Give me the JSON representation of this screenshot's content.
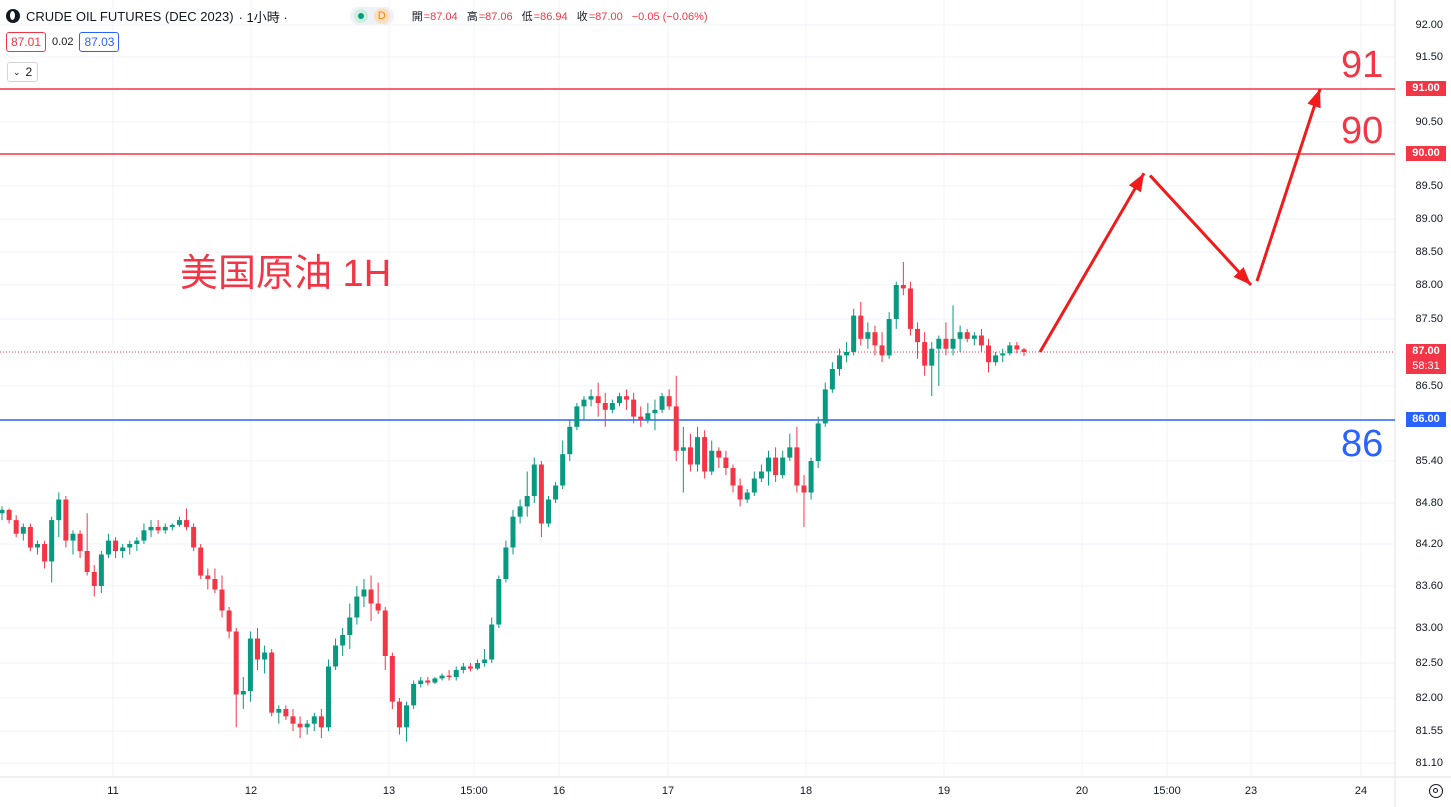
{
  "header": {
    "symbol": "CRUDE OIL FUTURES (DEC 2023)",
    "interval": "· 1小時 ·",
    "market_tag": "D",
    "ohlc": {
      "o_label": "開",
      "o": "=87.04",
      "h_label": "高",
      "h": "=87.06",
      "l_label": "低",
      "l": "=86.94",
      "c_label": "收",
      "c": "=87.00",
      "change": "−0.05 (−0.06%)"
    },
    "bid": "87.01",
    "spread": "0.02",
    "ask": "87.03",
    "indicator_count": "2"
  },
  "annotation": {
    "title": "美国原油 1H",
    "level_91": "91",
    "level_90": "90",
    "level_86": "86"
  },
  "price_axis": {
    "ticks": [
      "92.00",
      "91.50",
      "90.50",
      "89.50",
      "89.00",
      "88.50",
      "88.00",
      "87.50",
      "86.50",
      "85.40",
      "84.80",
      "84.20",
      "83.60",
      "83.00",
      "82.50",
      "82.00",
      "81.55",
      "81.10"
    ],
    "badges": {
      "b91": "91.00",
      "b90": "90.00",
      "last": "87.00",
      "countdown": "58:31",
      "b86": "86.00"
    }
  },
  "time_axis": {
    "labels": [
      "11",
      "12",
      "13",
      "15:00",
      "16",
      "17",
      "18",
      "19",
      "20",
      "15:00",
      "23",
      "24"
    ]
  },
  "colors": {
    "up": "#089981",
    "down": "#f23645",
    "resistance_line": "#f23645",
    "support_line": "#2962ff",
    "arrow": "#f21b1b"
  },
  "icons": [
    "instrument-logo-icon",
    "market-status-dot-icon",
    "chevron-down-icon",
    "settings-gear-icon"
  ],
  "chart_data": {
    "type": "candlestick",
    "instrument": "CRUDE OIL FUTURES (DEC 2023)",
    "timeframe": "1H",
    "price_range": [
      81.1,
      92.0
    ],
    "horizontal_levels": [
      {
        "price": 91.0,
        "color": "red"
      },
      {
        "price": 90.0,
        "color": "red"
      },
      {
        "price": 86.0,
        "color": "blue"
      }
    ],
    "last_price": 87.0,
    "projected_path_prices": [
      87.0,
      89.7,
      88.0,
      91.0
    ],
    "candles_ohlc": [
      [
        84.65,
        84.75,
        84.55,
        84.7
      ],
      [
        84.7,
        84.72,
        84.5,
        84.55
      ],
      [
        84.55,
        84.62,
        84.3,
        84.35
      ],
      [
        84.35,
        84.5,
        84.25,
        84.45
      ],
      [
        84.45,
        84.5,
        84.1,
        84.15
      ],
      [
        84.15,
        84.25,
        84.05,
        84.2
      ],
      [
        84.2,
        84.25,
        83.85,
        83.95
      ],
      [
        83.95,
        84.6,
        83.65,
        84.55
      ],
      [
        84.55,
        84.95,
        84.3,
        84.85
      ],
      [
        84.85,
        84.9,
        84.15,
        84.25
      ],
      [
        84.25,
        84.4,
        84.05,
        84.35
      ],
      [
        84.35,
        84.4,
        84.0,
        84.1
      ],
      [
        84.1,
        84.65,
        83.75,
        83.8
      ],
      [
        83.8,
        83.9,
        83.45,
        83.6
      ],
      [
        83.6,
        84.1,
        83.5,
        84.05
      ],
      [
        84.05,
        84.35,
        84.0,
        84.25
      ],
      [
        84.25,
        84.3,
        84.0,
        84.1
      ],
      [
        84.1,
        84.2,
        84.0,
        84.15
      ],
      [
        84.15,
        84.25,
        84.05,
        84.2
      ],
      [
        84.2,
        84.3,
        84.1,
        84.25
      ],
      [
        84.25,
        84.5,
        84.2,
        84.4
      ],
      [
        84.4,
        84.55,
        84.3,
        84.45
      ],
      [
        84.45,
        84.55,
        84.35,
        84.4
      ],
      [
        84.4,
        84.5,
        84.35,
        84.45
      ],
      [
        84.45,
        84.5,
        84.4,
        84.48
      ],
      [
        84.48,
        84.6,
        84.45,
        84.55
      ],
      [
        84.55,
        84.72,
        84.4,
        84.45
      ],
      [
        84.45,
        84.5,
        84.1,
        84.15
      ],
      [
        84.15,
        84.2,
        83.7,
        83.75
      ],
      [
        83.75,
        83.85,
        83.55,
        83.7
      ],
      [
        83.7,
        83.85,
        83.5,
        83.55
      ],
      [
        83.55,
        83.75,
        83.15,
        83.25
      ],
      [
        83.25,
        83.3,
        82.85,
        82.95
      ],
      [
        82.95,
        83.0,
        81.6,
        82.05
      ],
      [
        82.05,
        82.3,
        81.85,
        82.1
      ],
      [
        82.1,
        82.95,
        81.95,
        82.85
      ],
      [
        82.85,
        83.0,
        82.4,
        82.55
      ],
      [
        82.55,
        82.75,
        82.35,
        82.65
      ],
      [
        82.65,
        82.7,
        81.75,
        81.8
      ],
      [
        81.8,
        81.9,
        81.65,
        81.85
      ],
      [
        81.85,
        81.9,
        81.7,
        81.75
      ],
      [
        81.75,
        81.85,
        81.55,
        81.65
      ],
      [
        81.65,
        81.75,
        81.45,
        81.6
      ],
      [
        81.6,
        81.7,
        81.5,
        81.65
      ],
      [
        81.65,
        81.8,
        81.55,
        81.75
      ],
      [
        81.75,
        81.85,
        81.45,
        81.6
      ],
      [
        81.6,
        82.55,
        81.55,
        82.45
      ],
      [
        82.45,
        82.85,
        82.4,
        82.75
      ],
      [
        82.75,
        83.0,
        82.6,
        82.9
      ],
      [
        82.9,
        83.35,
        82.7,
        83.15
      ],
      [
        83.15,
        83.6,
        83.05,
        83.45
      ],
      [
        83.45,
        83.7,
        83.3,
        83.55
      ],
      [
        83.55,
        83.75,
        83.1,
        83.35
      ],
      [
        83.35,
        83.65,
        83.2,
        83.25
      ],
      [
        83.25,
        83.3,
        82.4,
        82.6
      ],
      [
        82.6,
        82.65,
        81.85,
        81.95
      ],
      [
        81.95,
        82.0,
        81.5,
        81.6
      ],
      [
        81.6,
        81.95,
        81.4,
        81.9
      ],
      [
        81.9,
        82.25,
        81.85,
        82.2
      ],
      [
        82.2,
        82.3,
        82.15,
        82.25
      ],
      [
        82.25,
        82.3,
        82.18,
        82.22
      ],
      [
        82.22,
        82.3,
        82.2,
        82.28
      ],
      [
        82.28,
        82.35,
        82.25,
        82.32
      ],
      [
        82.32,
        82.4,
        82.25,
        82.3
      ],
      [
        82.3,
        82.45,
        82.25,
        82.4
      ],
      [
        82.4,
        82.5,
        82.35,
        82.45
      ],
      [
        82.45,
        82.5,
        82.38,
        82.42
      ],
      [
        82.42,
        82.55,
        82.4,
        82.5
      ],
      [
        82.5,
        82.7,
        82.45,
        82.55
      ],
      [
        82.55,
        83.15,
        82.5,
        83.05
      ],
      [
        83.05,
        83.75,
        83.0,
        83.7
      ],
      [
        83.7,
        84.25,
        83.65,
        84.15
      ],
      [
        84.15,
        84.7,
        84.05,
        84.6
      ],
      [
        84.6,
        84.85,
        84.5,
        84.75
      ],
      [
        84.75,
        85.25,
        84.6,
        84.9
      ],
      [
        84.9,
        85.45,
        84.8,
        85.35
      ],
      [
        85.35,
        85.4,
        84.3,
        84.5
      ],
      [
        84.5,
        84.9,
        84.45,
        84.85
      ],
      [
        84.85,
        85.1,
        84.8,
        85.05
      ],
      [
        85.05,
        85.7,
        85.0,
        85.5
      ],
      [
        85.5,
        86.0,
        85.4,
        85.9
      ],
      [
        85.9,
        86.25,
        85.85,
        86.2
      ],
      [
        86.2,
        86.35,
        86.0,
        86.3
      ],
      [
        86.3,
        86.45,
        86.2,
        86.35
      ],
      [
        86.35,
        86.55,
        86.05,
        86.25
      ],
      [
        86.25,
        86.4,
        85.9,
        86.15
      ],
      [
        86.15,
        86.3,
        86.1,
        86.25
      ],
      [
        86.25,
        86.4,
        86.2,
        86.35
      ],
      [
        86.35,
        86.45,
        86.15,
        86.3
      ],
      [
        86.3,
        86.4,
        85.95,
        86.05
      ],
      [
        86.05,
        86.2,
        85.9,
        86.0
      ],
      [
        86.0,
        86.25,
        85.95,
        86.1
      ],
      [
        86.1,
        86.3,
        85.85,
        86.15
      ],
      [
        86.15,
        86.4,
        86.1,
        86.35
      ],
      [
        86.35,
        86.45,
        86.15,
        86.2
      ],
      [
        86.2,
        86.65,
        85.4,
        85.55
      ],
      [
        85.55,
        85.9,
        84.95,
        85.6
      ],
      [
        85.6,
        85.8,
        85.25,
        85.35
      ],
      [
        85.35,
        85.9,
        85.25,
        85.75
      ],
      [
        85.75,
        85.85,
        85.15,
        85.25
      ],
      [
        85.25,
        85.7,
        85.2,
        85.55
      ],
      [
        85.55,
        85.6,
        85.3,
        85.45
      ],
      [
        85.45,
        85.55,
        85.2,
        85.3
      ],
      [
        85.3,
        85.35,
        84.95,
        85.05
      ],
      [
        85.05,
        85.15,
        84.75,
        84.85
      ],
      [
        84.85,
        85.0,
        84.8,
        84.95
      ],
      [
        84.95,
        85.25,
        84.9,
        85.15
      ],
      [
        85.15,
        85.35,
        85.1,
        85.25
      ],
      [
        85.25,
        85.55,
        85.05,
        85.45
      ],
      [
        85.45,
        85.6,
        85.1,
        85.2
      ],
      [
        85.2,
        85.55,
        85.15,
        85.45
      ],
      [
        85.45,
        85.8,
        85.4,
        85.6
      ],
      [
        85.6,
        85.9,
        84.95,
        85.05
      ],
      [
        85.05,
        85.2,
        84.45,
        84.95
      ],
      [
        84.95,
        85.45,
        84.85,
        85.4
      ],
      [
        85.4,
        86.05,
        85.3,
        85.95
      ],
      [
        85.95,
        86.55,
        85.9,
        86.45
      ],
      [
        86.45,
        86.85,
        86.4,
        86.75
      ],
      [
        86.75,
        87.05,
        86.65,
        86.95
      ],
      [
        86.95,
        87.15,
        86.85,
        87.0
      ],
      [
        87.0,
        87.65,
        86.95,
        87.55
      ],
      [
        87.55,
        87.75,
        87.1,
        87.2
      ],
      [
        87.2,
        87.45,
        87.05,
        87.3
      ],
      [
        87.3,
        87.4,
        86.95,
        87.1
      ],
      [
        87.1,
        87.3,
        86.85,
        86.95
      ],
      [
        86.95,
        87.6,
        86.9,
        87.5
      ],
      [
        87.5,
        88.05,
        87.35,
        88.0
      ],
      [
        88.0,
        88.35,
        87.85,
        87.95
      ],
      [
        87.95,
        88.05,
        87.25,
        87.35
      ],
      [
        87.35,
        87.45,
        86.9,
        87.15
      ],
      [
        87.15,
        87.3,
        86.65,
        86.8
      ],
      [
        86.8,
        87.15,
        86.35,
        87.05
      ],
      [
        87.05,
        87.25,
        86.5,
        87.2
      ],
      [
        87.2,
        87.45,
        86.95,
        87.05
      ],
      [
        87.05,
        87.7,
        86.95,
        87.2
      ],
      [
        87.2,
        87.4,
        87.0,
        87.3
      ],
      [
        87.3,
        87.35,
        87.15,
        87.2
      ],
      [
        87.2,
        87.3,
        87.1,
        87.25
      ],
      [
        87.25,
        87.35,
        87.0,
        87.1
      ],
      [
        87.1,
        87.2,
        86.7,
        86.85
      ],
      [
        86.85,
        87.0,
        86.8,
        86.95
      ],
      [
        86.95,
        87.05,
        86.85,
        86.98
      ],
      [
        86.98,
        87.15,
        86.95,
        87.1
      ],
      [
        87.1,
        87.15,
        86.98,
        87.04
      ],
      [
        87.04,
        87.06,
        86.94,
        87.0
      ]
    ]
  }
}
